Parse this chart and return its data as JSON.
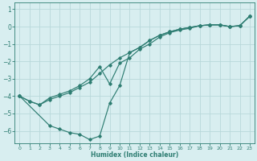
{
  "xlabel": "Humidex (Indice chaleur)",
  "background_color": "#d8eef0",
  "grid_color": "#b8d8da",
  "line_color": "#2e7d72",
  "xlim": [
    -0.5,
    23.5
  ],
  "ylim": [
    -6.7,
    1.4
  ],
  "yticks": [
    1,
    0,
    -1,
    -2,
    -3,
    -4,
    -5,
    -6
  ],
  "xticks": [
    0,
    1,
    2,
    3,
    4,
    5,
    6,
    7,
    8,
    9,
    10,
    11,
    12,
    13,
    14,
    15,
    16,
    17,
    18,
    19,
    20,
    21,
    22,
    23
  ],
  "series": [
    {
      "x": [
        0,
        1,
        2,
        3,
        4,
        5,
        6,
        7,
        8,
        9,
        10,
        11,
        12,
        13,
        14,
        15,
        16,
        17,
        18,
        19,
        20,
        21,
        22,
        23
      ],
      "y": [
        -4.0,
        -4.3,
        -4.5,
        -4.2,
        -4.0,
        -3.8,
        -3.5,
        -3.2,
        -2.7,
        -2.2,
        -1.8,
        -1.5,
        -1.2,
        -0.8,
        -0.5,
        -0.3,
        -0.15,
        -0.05,
        0.05,
        0.1,
        0.1,
        0.0,
        0.05,
        0.6
      ]
    },
    {
      "x": [
        0,
        1,
        2,
        3,
        4,
        5,
        6,
        7,
        8,
        9,
        10,
        11,
        12,
        13,
        14,
        15,
        16,
        17,
        18,
        19,
        20,
        21,
        22,
        23
      ],
      "y": [
        -4.0,
        -4.3,
        -4.5,
        -4.1,
        -3.9,
        -3.7,
        -3.4,
        -3.0,
        -2.3,
        -3.3,
        -2.1,
        -1.8,
        -1.3,
        -1.0,
        -0.6,
        -0.35,
        -0.2,
        -0.1,
        0.05,
        0.1,
        0.1,
        0.0,
        0.05,
        0.6
      ]
    },
    {
      "x": [
        0,
        3,
        4,
        5,
        6,
        7,
        8,
        9,
        10,
        11,
        12,
        13,
        14,
        15,
        16,
        17,
        18,
        19,
        20,
        21,
        22,
        23
      ],
      "y": [
        -4.0,
        -5.7,
        -5.9,
        -6.1,
        -6.2,
        -6.5,
        -6.3,
        -4.4,
        -3.4,
        -1.5,
        -1.2,
        -0.8,
        -0.5,
        -0.3,
        -0.15,
        -0.05,
        0.05,
        0.1,
        0.1,
        0.0,
        0.05,
        0.6
      ]
    }
  ]
}
